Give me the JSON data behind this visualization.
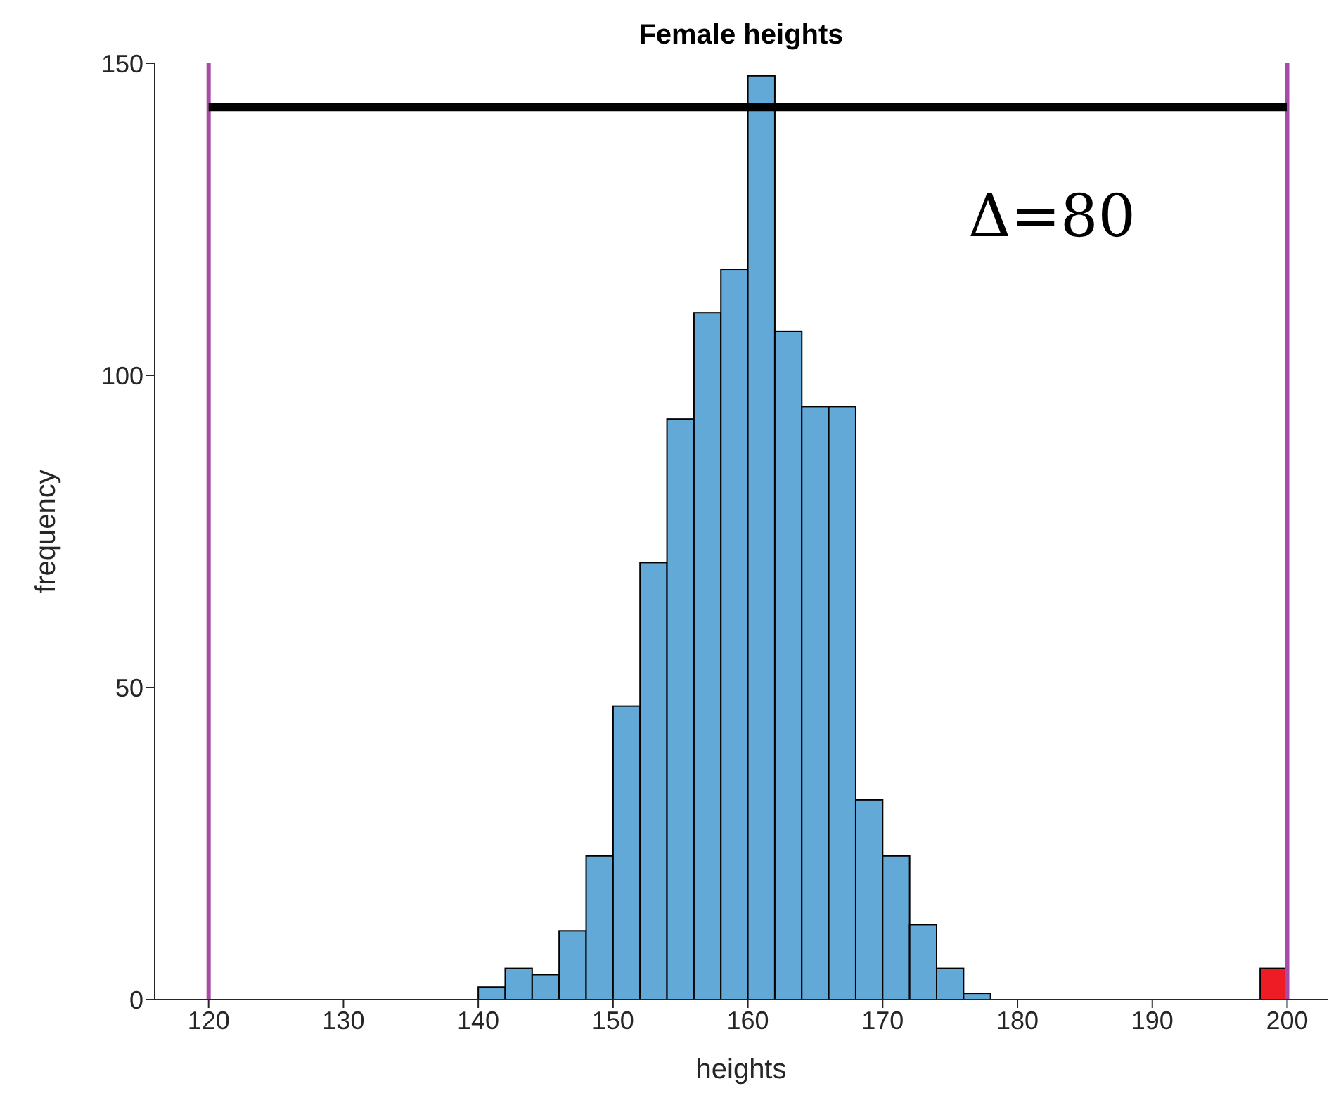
{
  "chart_data": {
    "type": "histogram",
    "title": "Female heights",
    "xlabel": "heights",
    "ylabel": "frequency",
    "bins": [
      140,
      142,
      144,
      146,
      148,
      150,
      152,
      154,
      156,
      158,
      160,
      162,
      164,
      166,
      168,
      170,
      172,
      174,
      176,
      178,
      180,
      182,
      184,
      186,
      188,
      190,
      192,
      194,
      196,
      198,
      200
    ],
    "values": [
      2,
      5,
      4,
      11,
      23,
      47,
      70,
      93,
      110,
      117,
      148,
      107,
      95,
      95,
      32,
      23,
      12,
      5,
      1,
      0,
      0,
      0,
      0,
      0,
      0,
      0,
      0,
      0,
      0,
      5
    ],
    "colors": [
      "#63a9d8",
      "#63a9d8",
      "#63a9d8",
      "#63a9d8",
      "#63a9d8",
      "#63a9d8",
      "#63a9d8",
      "#63a9d8",
      "#63a9d8",
      "#63a9d8",
      "#63a9d8",
      "#63a9d8",
      "#63a9d8",
      "#63a9d8",
      "#63a9d8",
      "#63a9d8",
      "#63a9d8",
      "#63a9d8",
      "#63a9d8",
      "#63a9d8",
      "#63a9d8",
      "#63a9d8",
      "#63a9d8",
      "#63a9d8",
      "#63a9d8",
      "#63a9d8",
      "#63a9d8",
      "#63a9d8",
      "#63a9d8",
      "#ee1c24"
    ],
    "xlim": [
      116,
      203
    ],
    "xticks": [
      120,
      130,
      140,
      150,
      160,
      170,
      180,
      190,
      200
    ],
    "ylim": [
      0,
      150
    ],
    "yticks": [
      0,
      50,
      100,
      150
    ],
    "ref_lines": [
      {
        "axis": "x",
        "value": 120,
        "color": "#a64ca6"
      },
      {
        "axis": "x",
        "value": 200,
        "color": "#a64ca6"
      },
      {
        "axis": "y",
        "value": 143,
        "color": "#000000"
      }
    ],
    "annotations": [
      "Δ=80"
    ]
  }
}
